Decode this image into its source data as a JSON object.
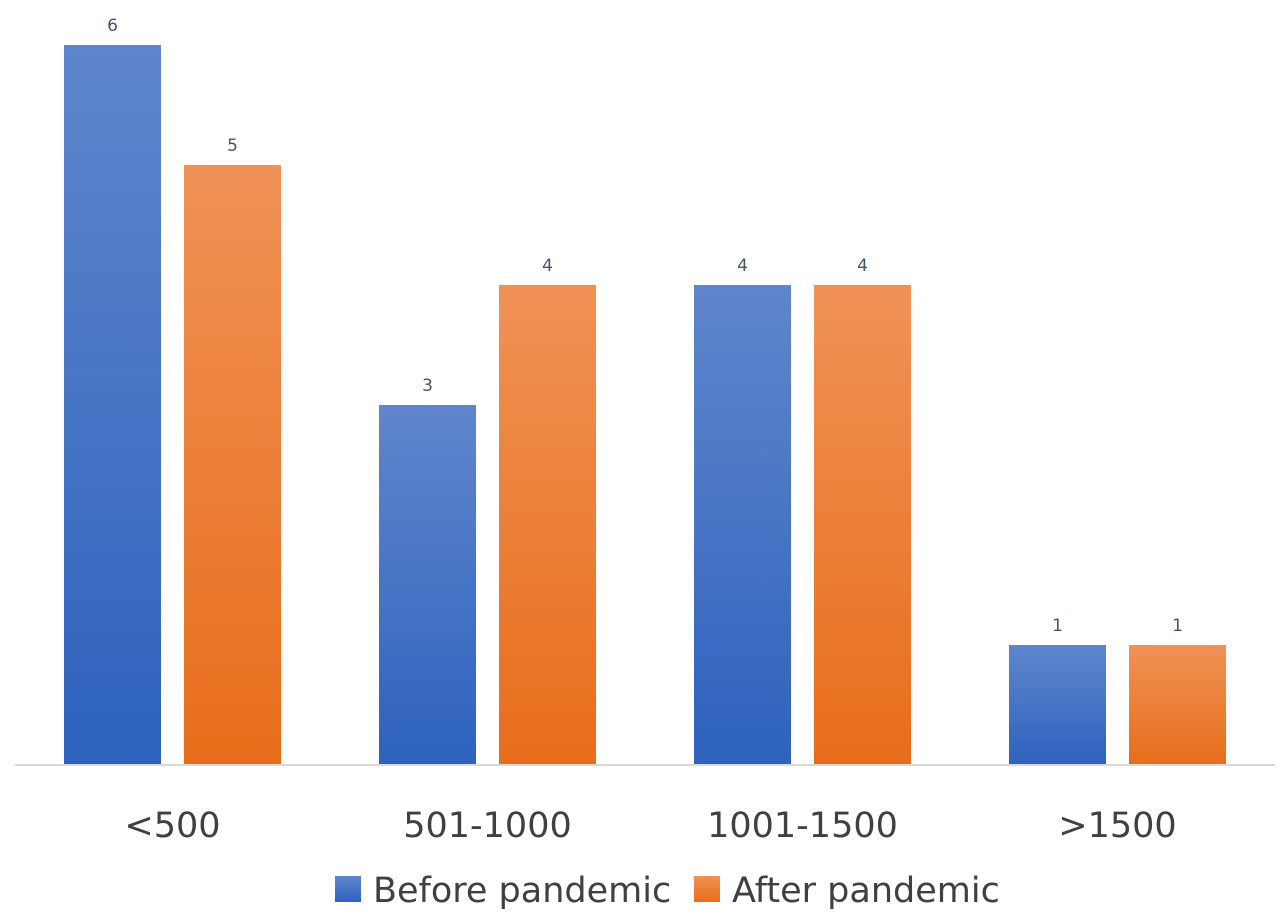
{
  "chart_data": {
    "type": "bar",
    "categories": [
      "<500",
      "501-1000",
      "1001-1500",
      ">1500"
    ],
    "series": [
      {
        "name": "Before pandemic",
        "values": [
          6,
          3,
          4,
          1
        ],
        "color": "#4472c4"
      },
      {
        "name": "After pandemic",
        "values": [
          5,
          4,
          4,
          1
        ],
        "color": "#ed7d31"
      }
    ],
    "title": "",
    "xlabel": "",
    "ylabel": "",
    "ylim": [
      0,
      6
    ],
    "grid": false,
    "data_labels": true,
    "legend_position": "bottom"
  }
}
